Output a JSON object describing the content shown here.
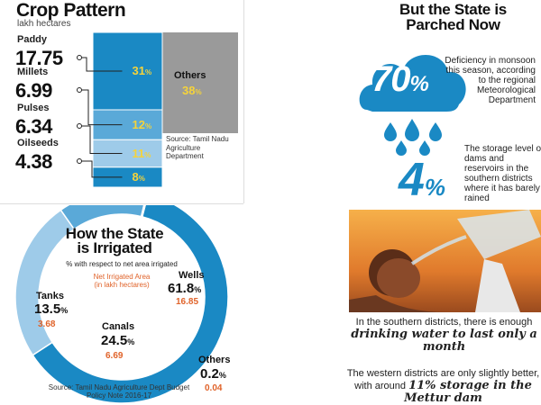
{
  "crop": {
    "title": "Crop Pattern",
    "unit": "lakh hectares",
    "others_label": "Others",
    "others_pct": "38",
    "source": "Source: Tamil Nadu Agriculture Department"
  },
  "rain": {
    "title_line1": "But the State is",
    "title_line2": "Parched Now",
    "pct": "70",
    "pct_sign": "%",
    "text": "Deficiency in monsoon this season, according to the regional Meteorological Department",
    "dams_num": "4",
    "dams_sign": "%",
    "dams_text": "The storage level of dams and reservoirs in the southern districts where it has barely rained"
  },
  "captions": {
    "c1_plain": "In the southern districts, there is enough",
    "c1_bold": "drinking water to last only a month",
    "c2_plain": "The western districts are only slightly better, with around",
    "c2_bold": "11% storage in the Mettur dam"
  },
  "irrigation": {
    "title_line1": "How the State",
    "title_line2": "is Irrigated",
    "subtitle": "% with respect to net area irrigated",
    "area_line1": "Net Irrigated Area",
    "area_line2": "(in lakh hectares)",
    "source_line1": "Source: Tamil Nadu Agriculture Dept Budget",
    "source_line2": "Policy Note 2016-17"
  },
  "colors": {
    "dark_blue": "#1a89c4",
    "mid_blue": "#5aa9d8",
    "light_blue": "#9ecbe9",
    "gray": "#9a9a9a",
    "yellow": "#f5d33a",
    "orange": "#e0632a"
  },
  "chart_data": [
    {
      "type": "bar",
      "stacked": true,
      "title": "Crop Pattern",
      "ylabel": "lakh hectares",
      "categories": [
        "Paddy",
        "Millets",
        "Pulses",
        "Oilseeds",
        "Others"
      ],
      "values": [
        17.75,
        6.99,
        6.34,
        4.38,
        null
      ],
      "percent_labels": [
        "31",
        "12",
        "11",
        "8",
        "38"
      ],
      "percent_values": [
        31,
        12,
        11,
        8,
        38
      ],
      "value_labels": [
        "17.75",
        "6.99",
        "6.34",
        "4.38",
        ""
      ]
    },
    {
      "type": "pie",
      "donut": true,
      "title": "How the State is Irrigated",
      "categories": [
        "Wells",
        "Canals",
        "Tanks",
        "Others"
      ],
      "values": [
        61.8,
        24.5,
        13.5,
        0.2
      ],
      "pct_labels": [
        "61.8",
        "24.5",
        "13.5",
        "0.2"
      ],
      "area_labels": [
        "16.85",
        "6.69",
        "3.68",
        "0.04"
      ]
    }
  ]
}
